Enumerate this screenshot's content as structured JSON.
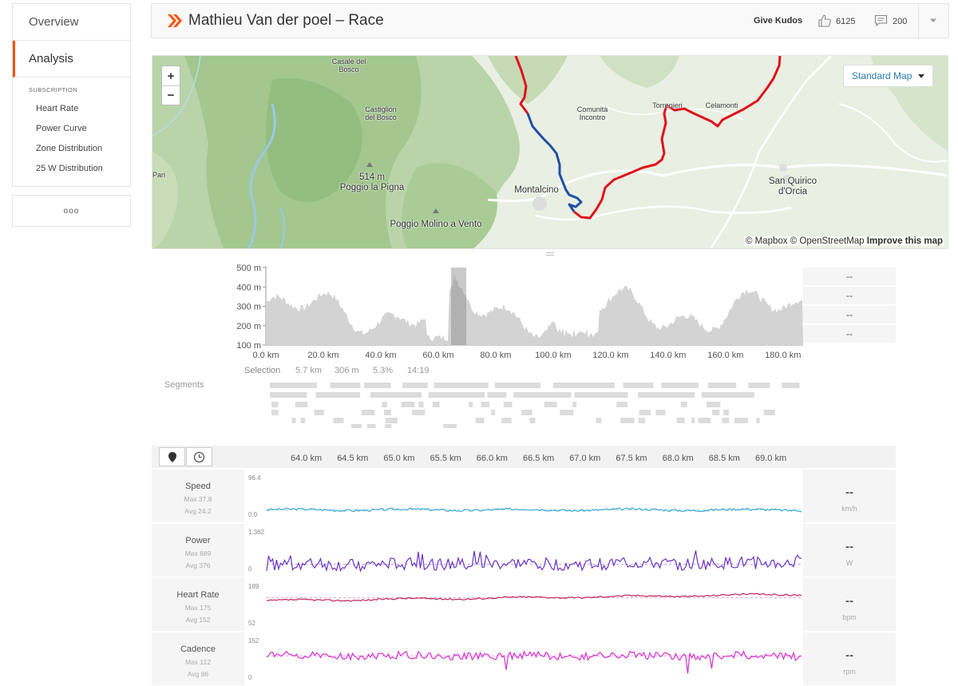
{
  "sidebar": {
    "nav": [
      "Overview",
      "Analysis"
    ],
    "subscription_heading": "SUBSCRIPTION",
    "sub_items": [
      "Heart Rate",
      "Power Curve",
      "Zone Distribution",
      "25 W Distribution"
    ],
    "more": "ooo"
  },
  "header": {
    "title": "Mathieu Van der poel – Race",
    "give_kudos": "Give Kudos",
    "kudos_count": "6125",
    "comment_count": "200",
    "brand_color": "#fc5200",
    "icons": [
      "strava-chevron-icon",
      "thumbs-up-icon",
      "comment-icon",
      "chevron-down-icon"
    ]
  },
  "map": {
    "zoom_in": "+",
    "zoom_out": "−",
    "style_label": "Standard Map",
    "attribution_prefix": "© Mapbox © OpenStreetMap",
    "attribution_link": "Improve this map",
    "places": [
      {
        "name": "Casale del\nBosco",
        "kind": "small"
      },
      {
        "name": "Castiglion\ndel Bosco",
        "kind": "small"
      },
      {
        "name": "514 m\nPoggio la Pigna",
        "kind": "big"
      },
      {
        "name": "Poggio Molino a Vento",
        "kind": "big"
      },
      {
        "name": "Pari",
        "kind": "small"
      },
      {
        "name": "Comunità\nIncontro",
        "kind": "small"
      },
      {
        "name": "Montalcino",
        "kind": "big"
      },
      {
        "name": "Torrenieri",
        "kind": "small"
      },
      {
        "name": "Celamonti",
        "kind": "small"
      },
      {
        "name": "San Quirico\nd'Orcia",
        "kind": "big"
      }
    ],
    "route_color": "#e0101c",
    "selection_color": "#1f4fa6"
  },
  "elevation": {
    "y_ticks": [
      "500 m",
      "400 m",
      "300 m",
      "200 m",
      "100 m"
    ],
    "x_ticks": [
      "0.0 km",
      "20.0 km",
      "40.0 km",
      "60.0 km",
      "80.0 km",
      "100.0 km",
      "120.0 km",
      "140.0 km",
      "160.0 km",
      "180.0 km"
    ],
    "selection": {
      "label": "Selection",
      "distance": "5.7 km",
      "elevation": "306 m",
      "grade": "5.3%",
      "time": "14:19"
    },
    "stats": [
      "--",
      "--",
      "--",
      "--"
    ],
    "segments_label": "Segments"
  },
  "streams": {
    "distance_ticks": [
      "64.0 km",
      "64.5 km",
      "65.0 km",
      "65.5 km",
      "66.0 km",
      "66.5 km",
      "67.0 km",
      "67.5 km",
      "68.0 km",
      "68.5 km",
      "69.0 km"
    ],
    "tool_icons": [
      "map-pin-icon",
      "clock-icon"
    ],
    "rows": [
      {
        "name": "Speed",
        "max": "Max 37.8",
        "avg": "Avg 24.2",
        "axis_max": "96.4",
        "axis_min": "0.0",
        "value": "--",
        "unit": "km/h",
        "color": "#3aa8d0",
        "base": 0.2,
        "noise": 0.03,
        "trend": 0
      },
      {
        "name": "Power",
        "max": "Max 889",
        "avg": "Avg 376",
        "axis_max": "1,362",
        "axis_min": "0",
        "value": "--",
        "unit": "W",
        "color": "#6a35c2",
        "base": 0.18,
        "noise": 0.16,
        "trend": 0.04
      },
      {
        "name": "Heart Rate",
        "max": "Max 175",
        "avg": "Avg 152",
        "axis_max": "189",
        "axis_min": "52",
        "value": "--",
        "unit": "bpm",
        "color": "#c2245c",
        "base": 0.66,
        "noise": 0.02,
        "trend": 0.17
      },
      {
        "name": "Cadence",
        "max": "Max 112",
        "avg": "Avg 86",
        "axis_max": "152",
        "axis_min": "0",
        "value": "--",
        "unit": "rpm",
        "color": "#d62fcf",
        "base": 0.64,
        "noise": 0.1,
        "trend": 0
      }
    ]
  }
}
